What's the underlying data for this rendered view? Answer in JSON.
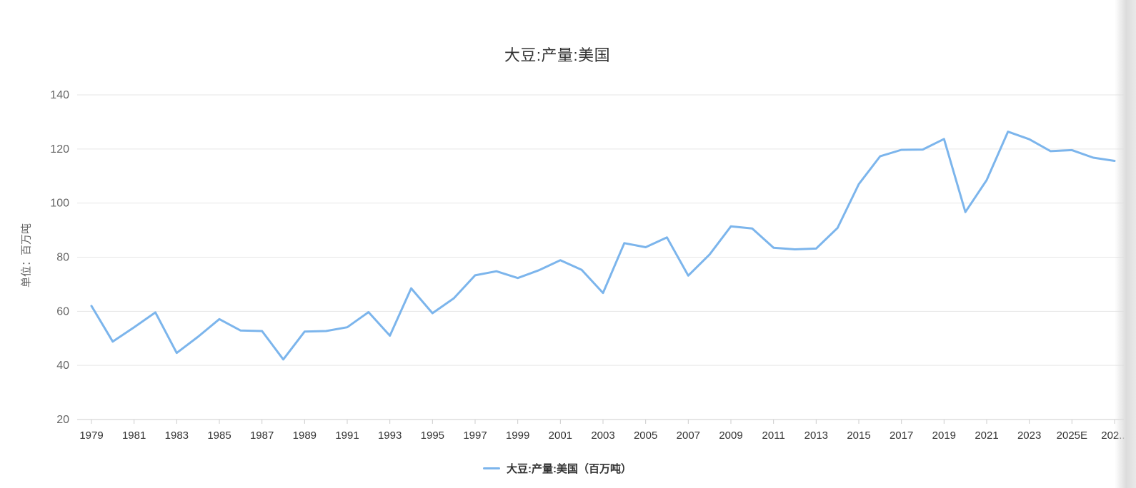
{
  "chart": {
    "title": "大豆:产量:美国",
    "y_axis_title": "单位：百万吨",
    "legend": {
      "label": "大豆:产量:美国（百万吨）",
      "marker_color": "#7cb5ec"
    }
  },
  "chart_data": {
    "type": "line",
    "title": "大豆:产量:美国",
    "xlabel": "",
    "ylabel": "单位：百万吨",
    "ylim": [
      20,
      140
    ],
    "y_ticks": [
      20,
      40,
      60,
      80,
      100,
      120,
      140
    ],
    "x": [
      1979,
      1980,
      1981,
      1982,
      1983,
      1984,
      1985,
      1986,
      1987,
      1988,
      1989,
      1990,
      1991,
      1992,
      1993,
      1994,
      1995,
      1996,
      1997,
      1998,
      1999,
      2000,
      2001,
      2002,
      2003,
      2004,
      2005,
      2006,
      2007,
      2008,
      2009,
      2010,
      2011,
      2012,
      2013,
      2014,
      2015,
      2016,
      2017,
      2018,
      2019,
      2020,
      2021,
      2022,
      2023,
      2024,
      2025,
      2026,
      2027
    ],
    "x_tick_labels": [
      "1979",
      "1981",
      "1983",
      "1985",
      "1987",
      "1989",
      "1991",
      "1993",
      "1995",
      "1997",
      "1999",
      "2001",
      "2003",
      "2005",
      "2007",
      "2009",
      "2011",
      "2013",
      "2015",
      "2017",
      "2019",
      "2021",
      "2023",
      "2025E",
      "202..."
    ],
    "x_tick_label_interval": 2,
    "series": [
      {
        "name": "大豆:产量:美国（百万吨）",
        "color": "#7cb5ec",
        "values": [
          62.0,
          48.8,
          54.1,
          59.6,
          44.6,
          50.6,
          57.1,
          52.9,
          52.7,
          42.2,
          52.5,
          52.7,
          54.1,
          59.7,
          51.0,
          68.5,
          59.3,
          64.8,
          73.3,
          74.8,
          72.3,
          75.2,
          78.9,
          75.3,
          66.8,
          85.2,
          83.7,
          87.3,
          73.2,
          81.0,
          91.4,
          90.6,
          83.5,
          82.9,
          83.2,
          90.8,
          107.0,
          117.3,
          119.7,
          119.8,
          123.7,
          96.7,
          108.5,
          126.4,
          123.6,
          119.2,
          119.6,
          116.8,
          115.6
        ]
      }
    ],
    "grid": "horizontal",
    "legend_position": "bottom-center",
    "colors": {
      "line": "#7cb5ec",
      "grid": "#e6e6e6",
      "axis": "#cccccc",
      "tick": "#cccccc",
      "y_label": "#666666",
      "x_label": "#333333",
      "title": "#333333",
      "legend_text": "#333333"
    }
  }
}
